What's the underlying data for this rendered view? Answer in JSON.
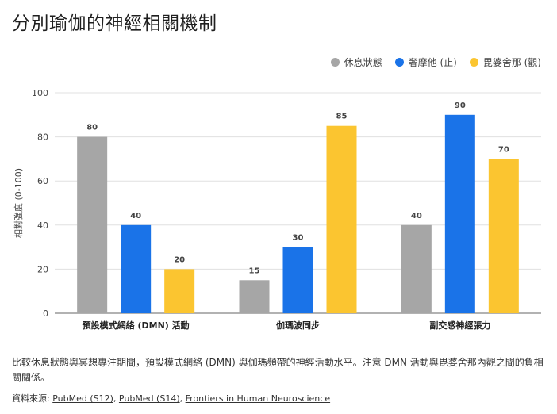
{
  "page": {
    "title": "分別瑜伽的神經相關機制",
    "caption": "比較休息狀態與冥想專注期間，預設模式網絡 (DMN) 與伽瑪頻帶的神經活動水平。注意 DMN 活動與毘婆舍那內觀之間的負相關關係。",
    "source_prefix": "資料來源:",
    "sources": [
      "PubMed (S12)",
      "PubMed (S14)",
      "Frontiers in Human Neuroscience"
    ],
    "source_sep": ", "
  },
  "colors": {
    "rest": "#a6a6a6",
    "samatha": "#1a73e8",
    "vipassana": "#fbc530",
    "grid": "#e0e0e0",
    "axis": "#666666"
  },
  "chart_data": {
    "type": "bar",
    "title": "分別瑜伽的神經相關機制",
    "ylabel": "相對強度 (0-100)",
    "xlabel": "",
    "ylim": [
      0,
      100
    ],
    "yticks": [
      0,
      20,
      40,
      60,
      80,
      100
    ],
    "grid": true,
    "legend_position": "top-right",
    "categories": [
      "預設模式網絡 (DMN) 活動",
      "伽瑪波同步",
      "副交感神經張力"
    ],
    "series": [
      {
        "name": "休息狀態",
        "color_key": "rest",
        "values": [
          80,
          15,
          40
        ]
      },
      {
        "name": "奢摩他 (止)",
        "color_key": "samatha",
        "values": [
          40,
          30,
          90
        ]
      },
      {
        "name": "毘婆舍那 (觀)",
        "color_key": "vipassana",
        "values": [
          20,
          85,
          70
        ]
      }
    ]
  }
}
